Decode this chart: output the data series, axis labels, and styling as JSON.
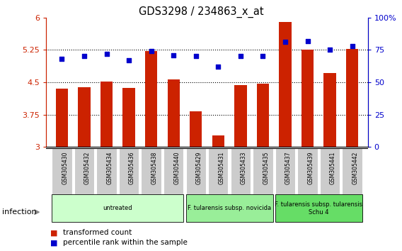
{
  "title": "GDS3298 / 234863_x_at",
  "samples": [
    "GSM305430",
    "GSM305432",
    "GSM305434",
    "GSM305436",
    "GSM305438",
    "GSM305440",
    "GSM305429",
    "GSM305431",
    "GSM305433",
    "GSM305435",
    "GSM305437",
    "GSM305439",
    "GSM305441",
    "GSM305442"
  ],
  "bar_values": [
    4.35,
    4.38,
    4.52,
    4.37,
    5.22,
    4.57,
    3.82,
    3.27,
    4.43,
    4.47,
    5.9,
    5.26,
    4.72,
    5.28
  ],
  "dot_values": [
    68,
    70,
    72,
    67,
    74,
    71,
    70,
    62,
    70,
    70,
    81,
    82,
    75,
    78
  ],
  "bar_color": "#cc2200",
  "dot_color": "#0000cc",
  "ylim_left": [
    3,
    6
  ],
  "ylim_right": [
    0,
    100
  ],
  "yticks_left": [
    3,
    3.75,
    4.5,
    5.25,
    6
  ],
  "yticks_right": [
    0,
    25,
    50,
    75,
    100
  ],
  "ytick_labels_right": [
    "0",
    "25",
    "50",
    "75",
    "100%"
  ],
  "groups": [
    {
      "label": "untreated",
      "start": 0,
      "end": 5,
      "color": "#ccffcc"
    },
    {
      "label": "F. tularensis subsp. novicida",
      "start": 6,
      "end": 9,
      "color": "#99ee99"
    },
    {
      "label": "F. tularensis subsp. tularensis\nSchu 4",
      "start": 10,
      "end": 13,
      "color": "#66dd66"
    }
  ],
  "infection_label": "infection",
  "legend_bar_label": "transformed count",
  "legend_dot_label": "percentile rank within the sample",
  "bg_color": "#ffffff",
  "plot_bg": "#ffffff",
  "tick_label_bg": "#cccccc"
}
